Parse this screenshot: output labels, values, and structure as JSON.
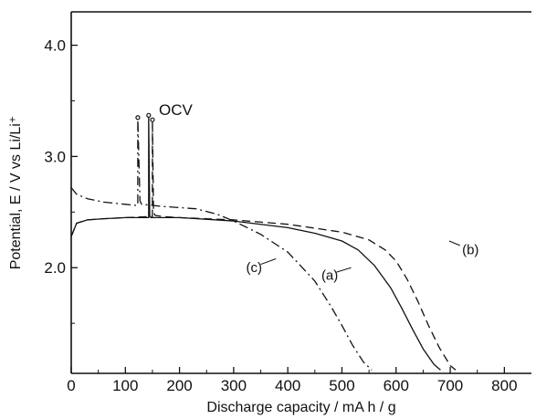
{
  "chart_data": {
    "type": "line",
    "title": "",
    "xlabel": "Discharge capacity / mA h / g",
    "ylabel": "Potential, E / V vs Li/Li⁺",
    "xlim": [
      0,
      850
    ],
    "ylim": [
      1.05,
      4.3
    ],
    "x_ticks": [
      0,
      100,
      200,
      300,
      400,
      500,
      600,
      700,
      800
    ],
    "y_ticks": [
      2.0,
      3.0,
      4.0
    ],
    "grid": false,
    "legend": "none",
    "series": [
      {
        "label": "(a)",
        "style": "solid",
        "x": [
          0,
          10,
          30,
          60,
          100,
          140,
          143,
          143,
          145,
          147,
          160,
          200,
          300,
          400,
          450,
          500,
          530,
          560,
          590,
          610,
          630,
          650,
          670,
          682
        ],
        "y": [
          2.28,
          2.4,
          2.43,
          2.44,
          2.45,
          2.45,
          2.45,
          3.37,
          2.46,
          2.45,
          2.45,
          2.45,
          2.42,
          2.36,
          2.31,
          2.24,
          2.16,
          2.02,
          1.82,
          1.64,
          1.45,
          1.27,
          1.13,
          1.08
        ]
      },
      {
        "label": "(b)",
        "style": "dashed",
        "x": [
          0,
          10,
          30,
          60,
          100,
          148,
          150,
          150,
          152,
          155,
          170,
          200,
          300,
          400,
          500,
          550,
          580,
          600,
          620,
          640,
          660,
          680,
          700,
          710
        ],
        "y": [
          2.28,
          2.4,
          2.43,
          2.44,
          2.45,
          2.46,
          2.46,
          3.33,
          2.5,
          2.47,
          2.46,
          2.45,
          2.43,
          2.39,
          2.32,
          2.25,
          2.16,
          2.06,
          1.9,
          1.7,
          1.48,
          1.28,
          1.12,
          1.08
        ]
      },
      {
        "label": "(c)",
        "style": "dashdot",
        "x": [
          0,
          10,
          30,
          60,
          100,
          120,
          123,
          123,
          127,
          130,
          170,
          230,
          270,
          300,
          350,
          400,
          450,
          480,
          500,
          520,
          540,
          555
        ],
        "y": [
          2.72,
          2.66,
          2.62,
          2.59,
          2.57,
          2.56,
          2.56,
          3.35,
          2.6,
          2.57,
          2.55,
          2.53,
          2.48,
          2.42,
          2.3,
          2.14,
          1.88,
          1.65,
          1.48,
          1.3,
          1.15,
          1.08
        ]
      }
    ],
    "annotations": [
      {
        "text": "OCV",
        "x": 162,
        "y": 3.42
      },
      {
        "text": "(a)",
        "x": 462,
        "y": 1.94
      },
      {
        "text": "(b)",
        "x": 722,
        "y": 2.17
      },
      {
        "text": "(c)",
        "x": 323,
        "y": 2.01
      }
    ]
  }
}
